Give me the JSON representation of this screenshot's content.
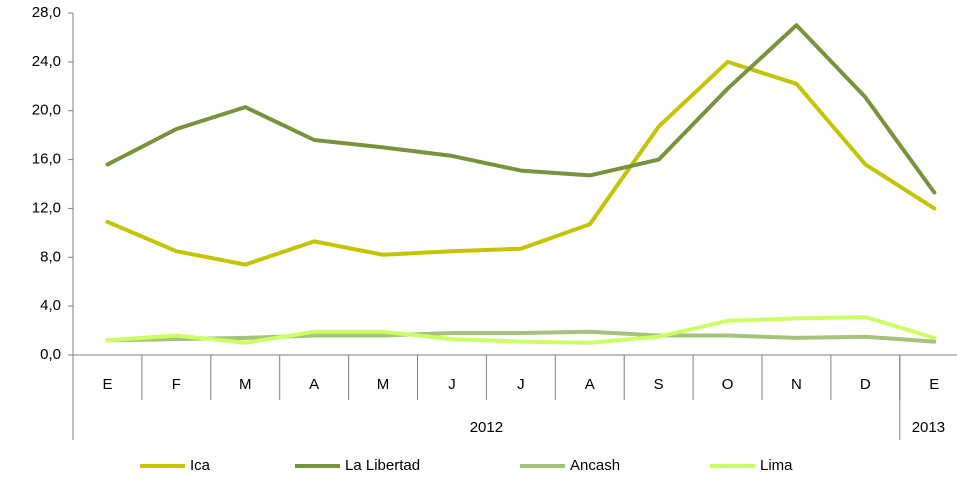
{
  "chart_data": {
    "type": "line",
    "categories": [
      "E",
      "F",
      "M",
      "A",
      "M",
      "J",
      "J",
      "A",
      "S",
      "O",
      "N",
      "D",
      "E"
    ],
    "groups": [
      {
        "label": "2012",
        "count": 12
      },
      {
        "label": "2013",
        "count": 1
      }
    ],
    "series": [
      {
        "name": "Ica",
        "color": "#c4c400",
        "values": [
          10.9,
          8.5,
          7.4,
          9.3,
          8.2,
          8.5,
          8.7,
          10.7,
          18.7,
          24.0,
          22.2,
          15.6,
          12.0
        ]
      },
      {
        "name": "La Libertad",
        "color": "#77933c",
        "values": [
          15.6,
          18.5,
          20.3,
          17.6,
          17.0,
          16.3,
          15.1,
          14.7,
          16.0,
          21.8,
          27.0,
          21.1,
          13.3
        ]
      },
      {
        "name": "Ancash",
        "color": "#a6c27c",
        "values": [
          1.2,
          1.3,
          1.4,
          1.6,
          1.6,
          1.8,
          1.8,
          1.9,
          1.6,
          1.6,
          1.4,
          1.5,
          1.1
        ]
      },
      {
        "name": "Lima",
        "color": "#ccff66",
        "values": [
          1.2,
          1.6,
          1.0,
          1.9,
          1.9,
          1.3,
          1.1,
          1.0,
          1.5,
          2.8,
          3.0,
          3.1,
          1.4
        ]
      }
    ],
    "ylim": [
      0,
      28
    ],
    "yticks": [
      {
        "value": 0,
        "label": "0,0"
      },
      {
        "value": 4,
        "label": "4,0"
      },
      {
        "value": 8,
        "label": "8,0"
      },
      {
        "value": 12,
        "label": "12,0"
      },
      {
        "value": 16,
        "label": "16,0"
      },
      {
        "value": 20,
        "label": "20,0"
      },
      {
        "value": 24,
        "label": "24,0"
      },
      {
        "value": 28,
        "label": "28,0"
      }
    ],
    "grid": false,
    "legend": "bottom"
  }
}
